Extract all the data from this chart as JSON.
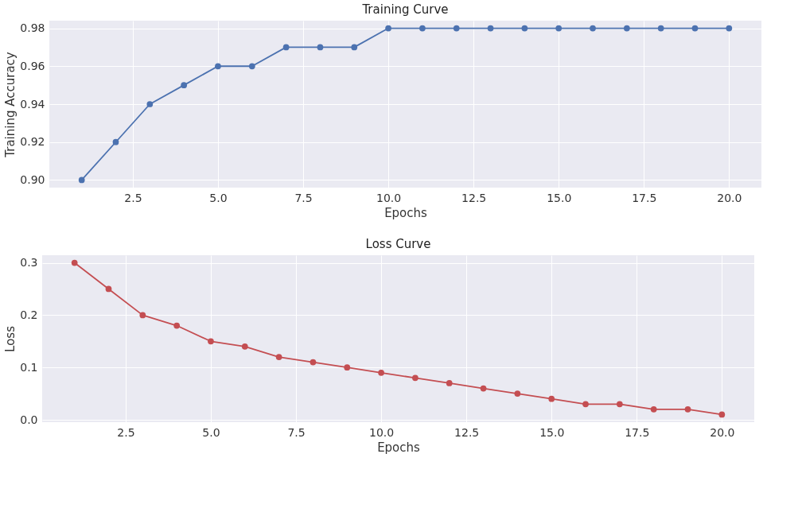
{
  "chart_data": [
    {
      "type": "line",
      "title": "Training Curve",
      "xlabel": "Epochs",
      "ylabel": "Training Accuracy",
      "x": [
        1,
        2,
        3,
        4,
        5,
        6,
        7,
        8,
        9,
        10,
        11,
        12,
        13,
        14,
        15,
        16,
        17,
        18,
        19,
        20
      ],
      "series": [
        {
          "color": "#4c72b0",
          "values": [
            0.9,
            0.92,
            0.94,
            0.95,
            0.96,
            0.96,
            0.97,
            0.97,
            0.97,
            0.98,
            0.98,
            0.98,
            0.98,
            0.98,
            0.98,
            0.98,
            0.98,
            0.98,
            0.98,
            0.98
          ]
        }
      ],
      "xlim": [
        0.05,
        20.95
      ],
      "xticks": [
        2.5,
        {
          "value": 5,
          "label": "5.0"
        },
        7.5,
        {
          "value": 10,
          "label": "10.0"
        },
        12.5,
        {
          "value": 15,
          "label": "15.0"
        },
        17.5,
        {
          "value": 20,
          "label": "20.0"
        }
      ],
      "ylim": [
        0.896,
        0.984
      ],
      "yticks": [
        {
          "value": 0.9,
          "label": "0.90"
        },
        0.92,
        0.94,
        0.96,
        0.98
      ],
      "grid": true,
      "marker": "circle",
      "line_style": "solid"
    },
    {
      "type": "line",
      "title": "Loss Curve",
      "xlabel": "Epochs",
      "ylabel": "Loss",
      "x": [
        1,
        2,
        3,
        4,
        5,
        6,
        7,
        8,
        9,
        10,
        11,
        12,
        13,
        14,
        15,
        16,
        17,
        18,
        19,
        20
      ],
      "series": [
        {
          "color": "#c44e52",
          "values": [
            0.3,
            0.25,
            0.2,
            0.18,
            0.15,
            0.14,
            0.12,
            0.11,
            0.1,
            0.09,
            0.08,
            0.07,
            0.06,
            0.05,
            0.04,
            0.03,
            0.03,
            0.02,
            0.02,
            0.01
          ]
        }
      ],
      "xlim": [
        0.05,
        20.95
      ],
      "xticks": [
        2.5,
        {
          "value": 5,
          "label": "5.0"
        },
        7.5,
        {
          "value": 10,
          "label": "10.0"
        },
        12.5,
        {
          "value": 15,
          "label": "15.0"
        },
        17.5,
        {
          "value": 20,
          "label": "20.0"
        }
      ],
      "ylim": [
        -0.0045,
        0.3145
      ],
      "yticks": [
        {
          "value": 0,
          "label": "0.0"
        },
        0.1,
        0.2,
        0.3
      ],
      "grid": true,
      "marker": "circle",
      "line_style": "solid"
    }
  ]
}
